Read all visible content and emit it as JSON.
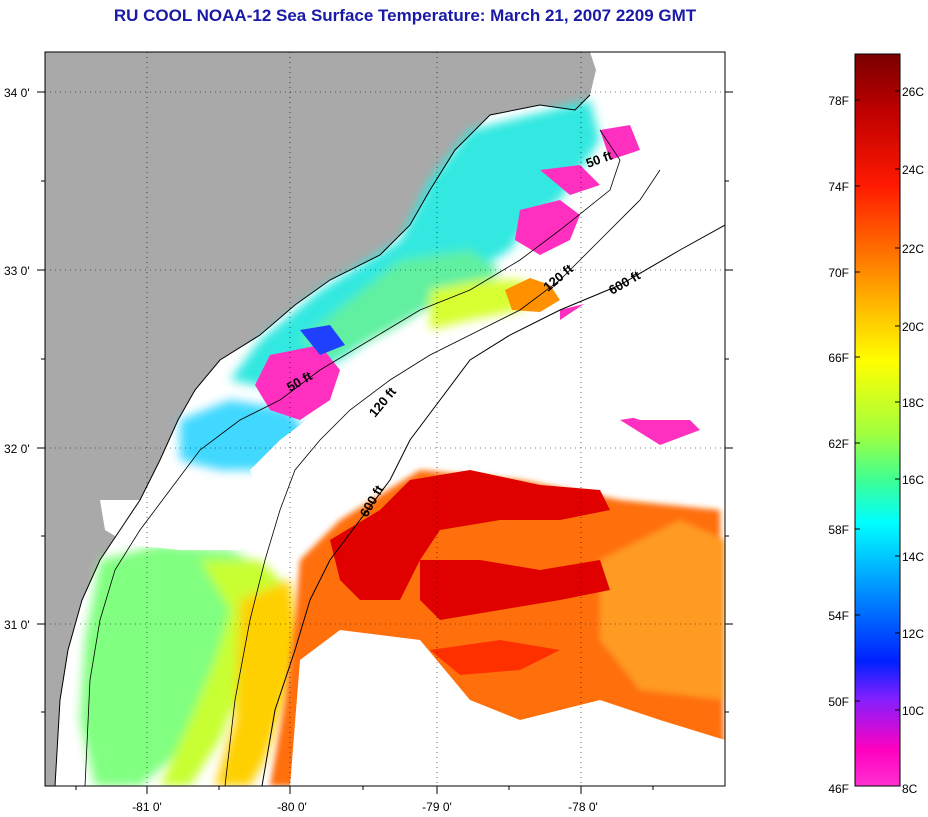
{
  "title": "RU COOL  NOAA-12  Sea Surface Temperature:  March 21, 2007 2209 GMT",
  "map": {
    "lat_ticks": [
      "34 0'",
      "33 0'",
      "32 0'",
      "31 0'"
    ],
    "lon_ticks": [
      "-81 0'",
      "-80 0'",
      "-79 0'",
      "-78 0'"
    ],
    "depth_labels": [
      "50 ft",
      "120 ft",
      "600 ft",
      "50 ft",
      "120 ft",
      "600 ft"
    ],
    "land_color": "#a9a9a9",
    "water_cloud_color": "#ffffff"
  },
  "colorbar": {
    "fahrenheit_labels": [
      "78F",
      "74F",
      "70F",
      "66F",
      "62F",
      "58F",
      "54F",
      "50F",
      "46F"
    ],
    "celsius_labels": [
      "26C",
      "24C",
      "22C",
      "20C",
      "18C",
      "16C",
      "14C",
      "12C",
      "10C",
      "8C"
    ],
    "colors_top_to_bottom": [
      "#7a0000",
      "#c80000",
      "#ff2a00",
      "#ff8a00",
      "#ffd800",
      "#ffff00",
      "#b8ff40",
      "#40ff90",
      "#00ffff",
      "#00a0ff",
      "#0020ff",
      "#8020ff",
      "#ff00c0"
    ]
  }
}
